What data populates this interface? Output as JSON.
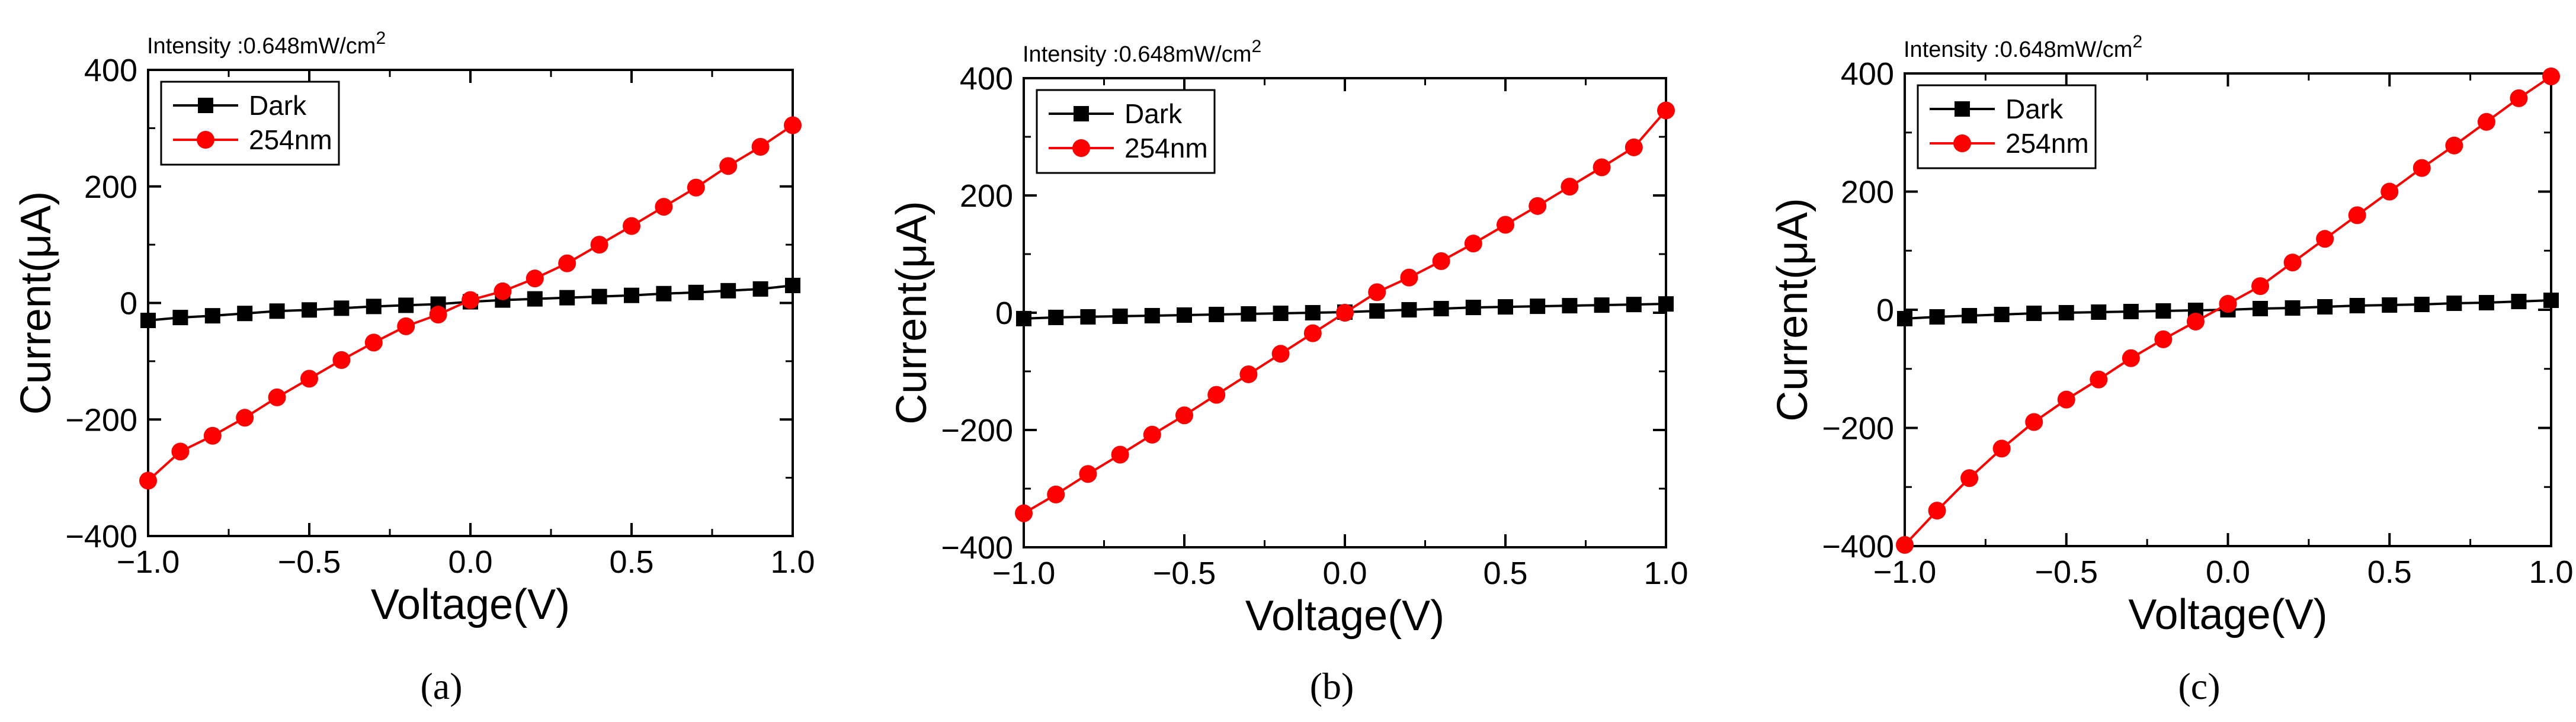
{
  "figure": {
    "panel_labels": [
      "(a)",
      "(b)",
      "(c)"
    ]
  },
  "colors": {
    "dark": "#000000",
    "uv": "#ff0000",
    "axis": "#000000"
  },
  "chart_data": [
    {
      "type": "line",
      "panel": "(a)",
      "annotation": "Intensity :0.648mW/cm",
      "annotation_superscript": "2",
      "xlabel": "Voltage(V)",
      "ylabel": "Current(μA)",
      "xlim": [
        -1.0,
        1.0
      ],
      "ylim": [
        -400,
        400
      ],
      "xticks": [
        "−1.0",
        "−0.5",
        "0.0",
        "0.5",
        "1.0"
      ],
      "yticks": [
        "400",
        "200",
        "0",
        "−200",
        "−400"
      ],
      "legend_position": "top-left",
      "x": [
        -1.0,
        -0.9,
        -0.8,
        -0.7,
        -0.6,
        -0.5,
        -0.4,
        -0.3,
        -0.2,
        -0.1,
        0.0,
        0.1,
        0.2,
        0.3,
        0.4,
        0.5,
        0.6,
        0.7,
        0.8,
        0.9,
        1.0
      ],
      "series": [
        {
          "name": "Dark",
          "values": [
            -30,
            -25,
            -22,
            -18,
            -14,
            -12,
            -9,
            -6,
            -4,
            -2,
            2,
            5,
            7,
            9,
            11,
            13,
            16,
            18,
            21,
            24,
            30
          ]
        },
        {
          "name": "254nm",
          "values": [
            -305,
            -255,
            -228,
            -197,
            -162,
            -130,
            -98,
            -68,
            -40,
            -20,
            5,
            20,
            42,
            68,
            100,
            132,
            165,
            198,
            235,
            268,
            305
          ]
        }
      ]
    },
    {
      "type": "line",
      "panel": "(b)",
      "annotation": "Intensity :0.648mW/cm",
      "annotation_superscript": "2",
      "xlabel": "Voltage(V)",
      "ylabel": "Current(μA)",
      "xlim": [
        -1.0,
        1.0
      ],
      "ylim": [
        -400,
        400
      ],
      "xticks": [
        "−1.0",
        "−0.5",
        "0.0",
        "0.5",
        "1.0"
      ],
      "yticks": [
        "400",
        "200",
        "0",
        "−200",
        "−400"
      ],
      "legend_position": "top-left",
      "x": [
        -1.0,
        -0.9,
        -0.8,
        -0.7,
        -0.6,
        -0.5,
        -0.4,
        -0.3,
        -0.2,
        -0.1,
        0.0,
        0.1,
        0.2,
        0.3,
        0.4,
        0.5,
        0.6,
        0.7,
        0.8,
        0.9,
        1.0
      ],
      "series": [
        {
          "name": "Dark",
          "values": [
            -10,
            -8,
            -7,
            -6,
            -5,
            -4,
            -3,
            -2,
            -1,
            0,
            1,
            3,
            5,
            7,
            9,
            10,
            11,
            12,
            13,
            14,
            15
          ]
        },
        {
          "name": "254nm",
          "values": [
            -342,
            -310,
            -275,
            -242,
            -208,
            -175,
            -140,
            -105,
            -70,
            -35,
            0,
            35,
            60,
            88,
            118,
            150,
            182,
            215,
            248,
            282,
            345
          ]
        }
      ]
    },
    {
      "type": "line",
      "panel": "(c)",
      "annotation": "Intensity :0.648mW/cm",
      "annotation_superscript": "2",
      "xlabel": "Voltage(V)",
      "ylabel": "Current(μA)",
      "xlim": [
        -1.0,
        1.0
      ],
      "ylim": [
        -400,
        400
      ],
      "xticks": [
        "−1.0",
        "−0.5",
        "0.0",
        "0.5",
        "1.0"
      ],
      "yticks": [
        "400",
        "200",
        "0",
        "−200",
        "−400"
      ],
      "legend_position": "top-left",
      "x": [
        -1.0,
        -0.9,
        -0.8,
        -0.7,
        -0.6,
        -0.5,
        -0.4,
        -0.3,
        -0.2,
        -0.1,
        0.0,
        0.1,
        0.2,
        0.3,
        0.4,
        0.5,
        0.6,
        0.7,
        0.8,
        0.9,
        1.0
      ],
      "series": [
        {
          "name": "Dark",
          "values": [
            -15,
            -12,
            -10,
            -8,
            -6,
            -5,
            -4,
            -3,
            -2,
            -1,
            0,
            2,
            3,
            5,
            7,
            8,
            9,
            11,
            12,
            14,
            16
          ]
        },
        {
          "name": "254nm",
          "values": [
            -398,
            -340,
            -285,
            -235,
            -190,
            -152,
            -118,
            -82,
            -50,
            -20,
            10,
            40,
            80,
            120,
            160,
            200,
            240,
            278,
            318,
            358,
            395
          ]
        }
      ]
    }
  ]
}
